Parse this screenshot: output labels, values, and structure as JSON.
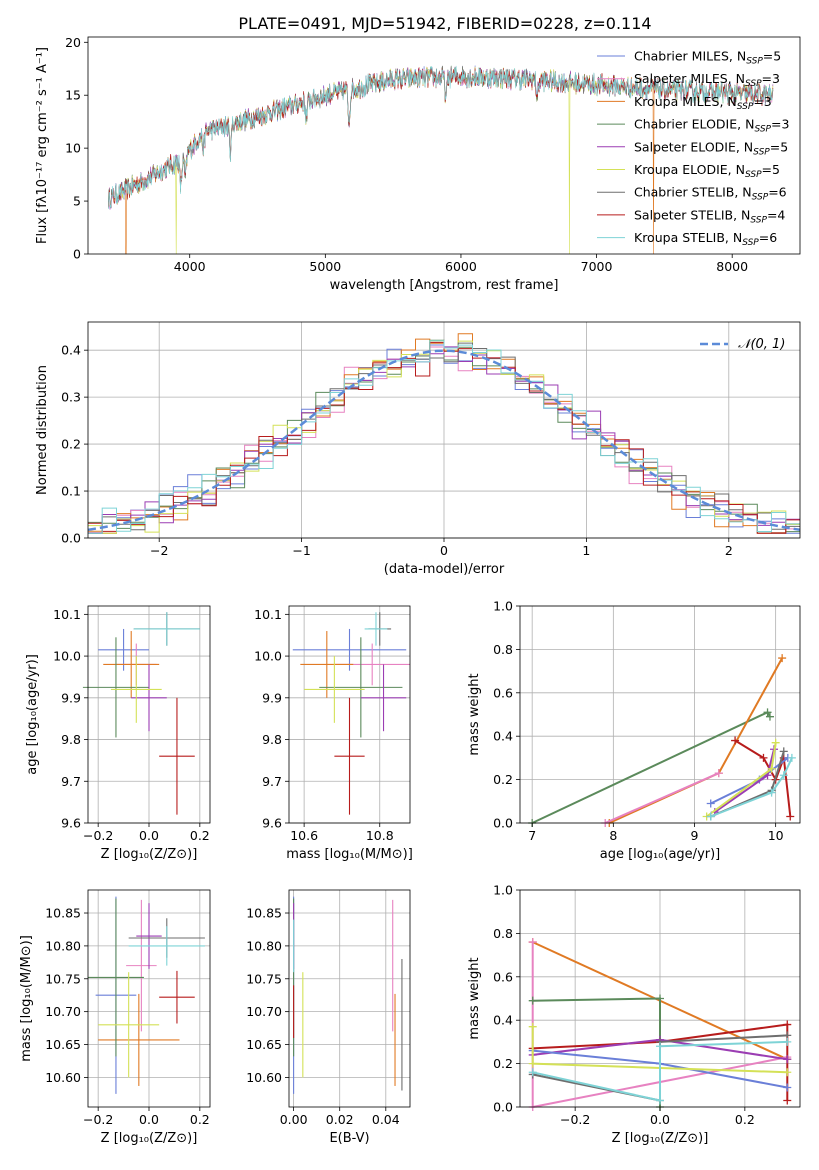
{
  "figure_title": "PLATE=0491, MJD=51942, FIBERID=0228, z=0.114",
  "colors": {
    "Chabrier MILES": "#6a7fd8",
    "Salpeter MILES": "#e782c1",
    "Kroupa MILES": "#e07a24",
    "Chabrier ELODIE": "#5b8a5b",
    "Salpeter ELODIE": "#9b3db3",
    "Kroupa ELODIE": "#d4e157",
    "Chabrier STELIB": "#6e6e6e",
    "Salpeter STELIB": "#b71c1c",
    "Kroupa STELIB": "#7ed3d6",
    "normal": "#5b8bd8"
  },
  "chart_data": [
    {
      "id": "spectrum",
      "type": "line",
      "xlabel": "wavelength [Angstrom, rest frame]",
      "ylabel": "Flux [fλ10⁻¹⁷ erg cm⁻² s⁻¹ A⁻¹]",
      "xlim": [
        3250,
        8500
      ],
      "ylim": [
        0,
        20.5
      ],
      "xticks": [
        4000,
        5000,
        6000,
        7000,
        8000
      ],
      "yticks": [
        0,
        5,
        10,
        15,
        20
      ],
      "grid": false,
      "legend_position": "right",
      "x_range_data": [
        3400,
        8300
      ],
      "continuum_anchors": [
        [
          3400,
          5.2
        ],
        [
          3700,
          7.2
        ],
        [
          3950,
          9.0
        ],
        [
          4100,
          11.5
        ],
        [
          4500,
          13.0
        ],
        [
          5000,
          15.0
        ],
        [
          5500,
          16.5
        ],
        [
          6000,
          16.8
        ],
        [
          6500,
          16.5
        ],
        [
          7000,
          16.0
        ],
        [
          7500,
          15.5
        ],
        [
          8000,
          15.2
        ],
        [
          8300,
          15.0
        ]
      ],
      "features": [
        {
          "x": 3934,
          "depth": 2.5
        },
        {
          "x": 3968,
          "depth": 2.0
        },
        {
          "x": 4101,
          "depth": 1.5
        },
        {
          "x": 4300,
          "depth": 2.5
        },
        {
          "x": 4861,
          "depth": 1.5
        },
        {
          "x": 5175,
          "depth": 3.0
        },
        {
          "x": 5890,
          "depth": 2.0
        },
        {
          "x": 6563,
          "depth": 1.5
        }
      ],
      "series": [
        {
          "name": "Chabrier MILES, N_SSP=5",
          "color_key": "Chabrier MILES"
        },
        {
          "name": "Salpeter MILES, N_SSP=3",
          "color_key": "Salpeter MILES"
        },
        {
          "name": "Kroupa MILES, N_SSP=3",
          "color_key": "Kroupa MILES",
          "drop_at": [
            3530,
            7420
          ]
        },
        {
          "name": "Chabrier ELODIE, N_SSP=3",
          "color_key": "Chabrier ELODIE"
        },
        {
          "name": "Salpeter ELODIE, N_SSP=5",
          "color_key": "Salpeter ELODIE"
        },
        {
          "name": "Kroupa ELODIE, N_SSP=5",
          "color_key": "Kroupa ELODIE",
          "drop_at": [
            3900,
            6800
          ]
        },
        {
          "name": "Chabrier STELIB, N_SSP=6",
          "color_key": "Chabrier STELIB"
        },
        {
          "name": "Salpeter STELIB, N_SSP=4",
          "color_key": "Salpeter STELIB"
        },
        {
          "name": "Kroupa STELIB, N_SSP=6",
          "color_key": "Kroupa STELIB"
        }
      ]
    },
    {
      "id": "residuals",
      "type": "line",
      "xlabel": "(data-model)/error",
      "ylabel": "Normed distribution",
      "xlim": [
        -2.5,
        2.5
      ],
      "ylim": [
        0,
        0.46
      ],
      "xticks": [
        -2,
        -1,
        0,
        1,
        2
      ],
      "yticks": [
        0.0,
        0.1,
        0.2,
        0.3,
        0.4
      ],
      "grid": true,
      "legend_position": "top-right",
      "legend_label": "𝒩(0, 1)",
      "bin_width": 0.1,
      "series_colors": [
        "Chabrier MILES",
        "Salpeter MILES",
        "Kroupa MILES",
        "Chabrier ELODIE",
        "Salpeter ELODIE",
        "Kroupa ELODIE",
        "Chabrier STELIB",
        "Salpeter STELIB",
        "Kroupa STELIB"
      ]
    },
    {
      "id": "age_vs_Z",
      "type": "scatter",
      "xlabel": "Z [log₁₀(Z/Z⊙)]",
      "ylabel": "age  [log₁₀(age/yr)]",
      "xlim": [
        -0.24,
        0.24
      ],
      "ylim": [
        9.6,
        10.12
      ],
      "xticks": [
        -0.2,
        0.0,
        0.2
      ],
      "yticks": [
        9.6,
        9.7,
        9.8,
        9.9,
        10.0,
        10.1
      ],
      "grid": true,
      "points": [
        {
          "k": "Chabrier MILES",
          "x": -0.1,
          "y": 10.015,
          "xerr": 0.1,
          "yerr": 0.05
        },
        {
          "k": "Salpeter MILES",
          "x": -0.05,
          "y": 9.98,
          "xerr": 0.08,
          "yerr": 0.05
        },
        {
          "k": "Kroupa MILES",
          "x": -0.07,
          "y": 9.98,
          "xerr": 0.11,
          "yerr": 0.08
        },
        {
          "k": "Chabrier ELODIE",
          "x": -0.13,
          "y": 9.925,
          "xerr": 0.13,
          "yerr": 0.12
        },
        {
          "k": "Salpeter ELODIE",
          "x": 0.0,
          "y": 9.9,
          "xerr": 0.07,
          "yerr": 0.08
        },
        {
          "k": "Kroupa ELODIE",
          "x": -0.05,
          "y": 9.92,
          "xerr": 0.1,
          "yerr": 0.08
        },
        {
          "k": "Chabrier STELIB",
          "x": 0.07,
          "y": 10.065,
          "xerr": 0.13,
          "yerr": 0.04
        },
        {
          "k": "Salpeter STELIB",
          "x": 0.11,
          "y": 9.76,
          "xerr": 0.07,
          "yerr": 0.14
        },
        {
          "k": "Kroupa STELIB",
          "x": 0.07,
          "y": 10.065,
          "xerr": 0.13,
          "yerr": 0.04
        }
      ]
    },
    {
      "id": "age_vs_mass",
      "type": "scatter",
      "xlabel": "mass [log₁₀(M/M⊙)]",
      "ylabel": "",
      "xlim": [
        10.56,
        10.88
      ],
      "ylim": [
        9.6,
        10.12
      ],
      "xticks": [
        10.6,
        10.8
      ],
      "yticks": [
        9.6,
        9.7,
        9.8,
        9.9,
        10.0,
        10.1
      ],
      "grid": true,
      "points": [
        {
          "k": "Chabrier MILES",
          "x": 10.72,
          "y": 10.015,
          "xerr": 0.15,
          "yerr": 0.05
        },
        {
          "k": "Salpeter MILES",
          "x": 10.78,
          "y": 9.98,
          "xerr": 0.1,
          "yerr": 0.05
        },
        {
          "k": "Kroupa MILES",
          "x": 10.66,
          "y": 9.98,
          "xerr": 0.07,
          "yerr": 0.08
        },
        {
          "k": "Chabrier ELODIE",
          "x": 10.75,
          "y": 9.925,
          "xerr": 0.11,
          "yerr": 0.12
        },
        {
          "k": "Salpeter ELODIE",
          "x": 10.81,
          "y": 9.9,
          "xerr": 0.06,
          "yerr": 0.08
        },
        {
          "k": "Kroupa ELODIE",
          "x": 10.68,
          "y": 9.92,
          "xerr": 0.08,
          "yerr": 0.08
        },
        {
          "k": "Chabrier STELIB",
          "x": 10.8,
          "y": 10.065,
          "xerr": 0.03,
          "yerr": 0.04
        },
        {
          "k": "Salpeter STELIB",
          "x": 10.72,
          "y": 9.76,
          "xerr": 0.04,
          "yerr": 0.14
        },
        {
          "k": "Kroupa STELIB",
          "x": 10.79,
          "y": 10.065,
          "xerr": 0.03,
          "yerr": 0.04
        }
      ]
    },
    {
      "id": "massweight_vs_age",
      "type": "line",
      "xlabel": "age  [log₁₀(age/yr)]",
      "ylabel": "mass weight",
      "xlim": [
        6.85,
        10.3
      ],
      "ylim": [
        0,
        1.0
      ],
      "xticks": [
        7,
        8,
        9,
        10
      ],
      "yticks": [
        0.0,
        0.2,
        0.4,
        0.6,
        0.8,
        1.0
      ],
      "grid": true,
      "series": [
        {
          "k": "Chabrier ELODIE",
          "pts": [
            [
              7.0,
              0.0
            ],
            [
              9.9,
              0.51
            ],
            [
              9.93,
              0.49
            ]
          ]
        },
        {
          "k": "Kroupa MILES",
          "pts": [
            [
              7.95,
              0.0
            ],
            [
              9.3,
              0.23
            ],
            [
              10.08,
              0.76
            ]
          ]
        },
        {
          "k": "Salpeter MILES",
          "pts": [
            [
              7.9,
              0.0
            ],
            [
              9.3,
              0.23
            ]
          ]
        },
        {
          "k": "Salpeter STELIB",
          "pts": [
            [
              9.5,
              0.38
            ],
            [
              9.85,
              0.3
            ],
            [
              10.0,
              0.2
            ],
            [
              10.1,
              0.3
            ],
            [
              10.18,
              0.03
            ]
          ]
        },
        {
          "k": "Chabrier MILES",
          "pts": [
            [
              9.2,
              0.09
            ],
            [
              9.8,
              0.2
            ],
            [
              10.15,
              0.3
            ]
          ]
        },
        {
          "k": "Salpeter ELODIE",
          "pts": [
            [
              9.25,
              0.05
            ],
            [
              9.9,
              0.22
            ],
            [
              9.98,
              0.34
            ]
          ]
        },
        {
          "k": "Kroupa ELODIE",
          "pts": [
            [
              9.15,
              0.03
            ],
            [
              9.95,
              0.25
            ],
            [
              10.0,
              0.37
            ]
          ]
        },
        {
          "k": "Chabrier STELIB",
          "pts": [
            [
              9.2,
              0.03
            ],
            [
              9.95,
              0.15
            ],
            [
              10.1,
              0.33
            ]
          ]
        },
        {
          "k": "Kroupa STELIB",
          "pts": [
            [
              9.2,
              0.03
            ],
            [
              9.95,
              0.14
            ],
            [
              10.1,
              0.22
            ],
            [
              10.2,
              0.3
            ]
          ]
        }
      ]
    },
    {
      "id": "mass_vs_Z",
      "type": "scatter",
      "xlabel": "Z [log₁₀(Z/Z⊙)]",
      "ylabel": "mass [log₁₀(M/M⊙)]",
      "xlim": [
        -0.24,
        0.24
      ],
      "ylim": [
        10.555,
        10.885
      ],
      "xticks": [
        -0.2,
        0.0,
        0.2
      ],
      "yticks": [
        10.6,
        10.65,
        10.7,
        10.75,
        10.8,
        10.85
      ],
      "grid": true,
      "points": [
        {
          "k": "Chabrier MILES",
          "x": -0.13,
          "y": 10.725,
          "xerr": 0.08,
          "yerr": 0.15
        },
        {
          "k": "Salpeter MILES",
          "x": -0.03,
          "y": 10.77,
          "xerr": 0.06,
          "yerr": 0.1
        },
        {
          "k": "Kroupa MILES",
          "x": -0.04,
          "y": 10.657,
          "xerr": 0.16,
          "yerr": 0.07
        },
        {
          "k": "Chabrier ELODIE",
          "x": -0.13,
          "y": 10.752,
          "xerr": 0.11,
          "yerr": 0.12
        },
        {
          "k": "Salpeter ELODIE",
          "x": 0.0,
          "y": 10.815,
          "xerr": 0.05,
          "yerr": 0.05
        },
        {
          "k": "Kroupa ELODIE",
          "x": -0.08,
          "y": 10.68,
          "xerr": 0.12,
          "yerr": 0.08
        },
        {
          "k": "Chabrier STELIB",
          "x": 0.07,
          "y": 10.812,
          "xerr": 0.15,
          "yerr": 0.03
        },
        {
          "k": "Salpeter STELIB",
          "x": 0.11,
          "y": 10.722,
          "xerr": 0.07,
          "yerr": 0.04
        },
        {
          "k": "Kroupa STELIB",
          "x": 0.07,
          "y": 10.8,
          "xerr": 0.15,
          "yerr": 0.03
        }
      ]
    },
    {
      "id": "mass_vs_EBV",
      "type": "scatter",
      "xlabel": "E(B-V)",
      "ylabel": "",
      "xlim": [
        -0.002,
        0.0505
      ],
      "ylim": [
        10.555,
        10.885
      ],
      "xticks": [
        0.0,
        0.02,
        0.04
      ],
      "yticks": [
        10.6,
        10.65,
        10.7,
        10.75,
        10.8,
        10.85
      ],
      "grid": true,
      "points": [
        {
          "k": "Chabrier MILES",
          "x": 0.0,
          "y": 10.725,
          "xerr": 0.0,
          "yerr": 0.15
        },
        {
          "k": "Salpeter MILES",
          "x": 0.043,
          "y": 10.77,
          "xerr": 0.0,
          "yerr": 0.1
        },
        {
          "k": "Kroupa MILES",
          "x": 0.044,
          "y": 10.657,
          "xerr": 0.0,
          "yerr": 0.07
        },
        {
          "k": "Chabrier ELODIE",
          "x": 0.0,
          "y": 10.752,
          "xerr": 0.0,
          "yerr": 0.12
        },
        {
          "k": "Salpeter ELODIE",
          "x": 0.0,
          "y": 10.815,
          "xerr": 0.0,
          "yerr": 0.05
        },
        {
          "k": "Kroupa ELODIE",
          "x": 0.004,
          "y": 10.68,
          "xerr": 0.0,
          "yerr": 0.08
        },
        {
          "k": "Chabrier STELIB",
          "x": 0.047,
          "y": 10.68,
          "xerr": 0.0,
          "yerr": 0.1
        },
        {
          "k": "Salpeter STELIB",
          "x": 0.0,
          "y": 10.7,
          "xerr": 0.0,
          "yerr": 0.04
        },
        {
          "k": "Kroupa STELIB",
          "x": 0.0,
          "y": 10.8,
          "xerr": 0.0,
          "yerr": 0.04
        }
      ]
    },
    {
      "id": "massweight_vs_Z",
      "type": "line",
      "xlabel": "Z [log₁₀(Z/Z⊙)]",
      "ylabel": "mass weight",
      "xlim": [
        -0.33,
        0.33
      ],
      "ylim": [
        0,
        1.0
      ],
      "xticks": [
        -0.2,
        0.0,
        0.2
      ],
      "yticks": [
        0.0,
        0.2,
        0.4,
        0.6,
        0.8,
        1.0
      ],
      "grid": true,
      "series": [
        {
          "k": "Kroupa MILES",
          "pts": [
            [
              -0.3,
              0.76
            ],
            [
              0.3,
              0.22
            ]
          ]
        },
        {
          "k": "Salpeter MILES",
          "pts": [
            [
              -0.3,
              0.76
            ],
            [
              -0.3,
              0.0
            ],
            [
              0.3,
              0.23
            ]
          ]
        },
        {
          "k": "Chabrier ELODIE",
          "pts": [
            [
              -0.3,
              0.49
            ],
            [
              0.0,
              0.5
            ],
            [
              0.0,
              0.0
            ]
          ]
        },
        {
          "k": "Salpeter STELIB",
          "pts": [
            [
              -0.3,
              0.27
            ],
            [
              0.0,
              0.3
            ],
            [
              0.3,
              0.38
            ],
            [
              0.3,
              0.03
            ]
          ]
        },
        {
          "k": "Salpeter ELODIE",
          "pts": [
            [
              -0.3,
              0.24
            ],
            [
              0.0,
              0.31
            ],
            [
              0.3,
              0.22
            ]
          ]
        },
        {
          "k": "Chabrier MILES",
          "pts": [
            [
              -0.3,
              0.26
            ],
            [
              0.0,
              0.2
            ],
            [
              0.3,
              0.09
            ]
          ]
        },
        {
          "k": "Kroupa ELODIE",
          "pts": [
            [
              -0.3,
              0.37
            ],
            [
              -0.3,
              0.2
            ],
            [
              0.3,
              0.16
            ]
          ]
        },
        {
          "k": "Chabrier STELIB",
          "pts": [
            [
              -0.3,
              0.15
            ],
            [
              0.0,
              0.03
            ],
            [
              0.0,
              0.3
            ],
            [
              0.3,
              0.33
            ]
          ]
        },
        {
          "k": "Kroupa STELIB",
          "pts": [
            [
              -0.3,
              0.16
            ],
            [
              0.0,
              0.03
            ],
            [
              0.0,
              0.28
            ],
            [
              0.3,
              0.3
            ]
          ]
        }
      ]
    }
  ]
}
